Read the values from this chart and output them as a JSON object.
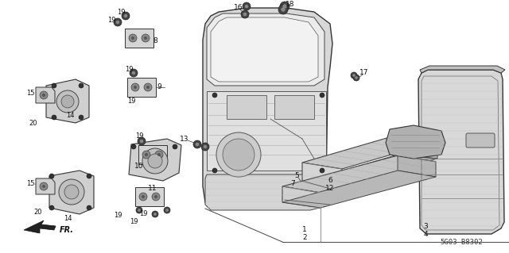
{
  "bg_color": "#ffffff",
  "diagram_code": "5G03-B8302",
  "line_color": "#333333",
  "fill_light": "#e8e8e8",
  "fill_med": "#cccccc",
  "fill_dark": "#aaaaaa"
}
